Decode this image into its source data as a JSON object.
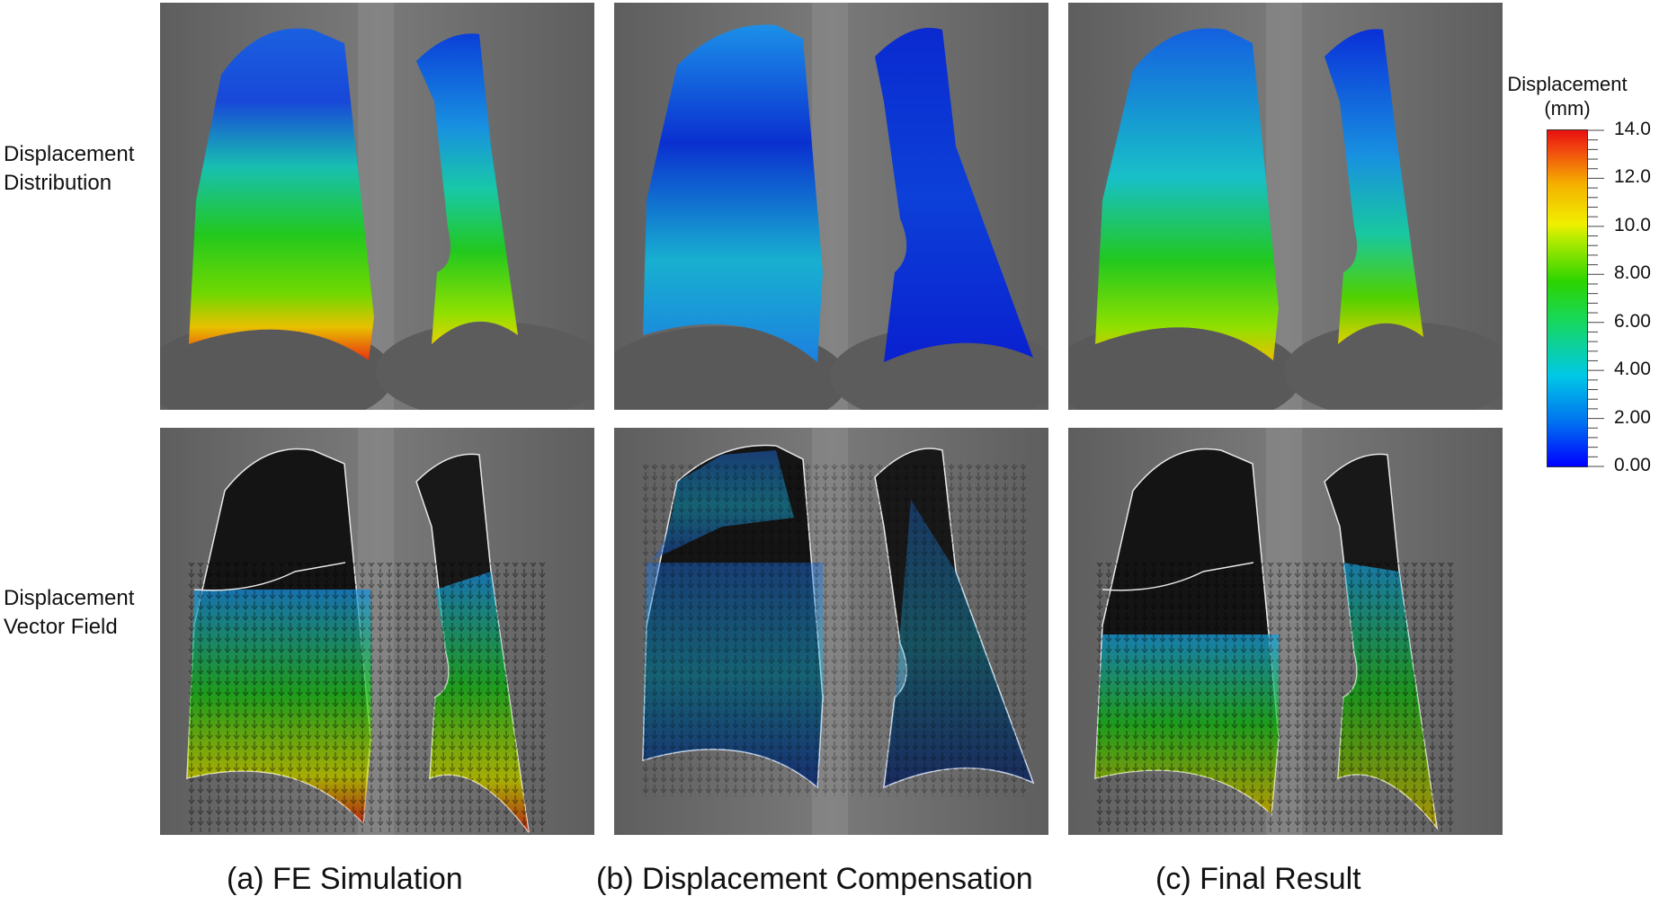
{
  "row_labels": {
    "top": [
      "Displacement",
      "Distribution"
    ],
    "bottom": [
      "Displacement",
      "Vector Field"
    ]
  },
  "captions": [
    {
      "letter": "(a)",
      "text": "FE Simulation"
    },
    {
      "letter": "(b)",
      "text": "Displacement Compensation"
    },
    {
      "letter": "(c)",
      "text": "Final Result"
    }
  ],
  "colorbar": {
    "title_line1": "Displacement",
    "title_line2": "(mm)",
    "labels": [
      "14.0",
      "12.0",
      "10.0",
      "8.00",
      "6.00",
      "4.00",
      "2.00",
      "0.00"
    ],
    "min": 0,
    "max": 14,
    "colors": {
      "low": "#0000ff",
      "mid_low": "#00c8e6",
      "mid": "#2cd400",
      "mid_high": "#f0f000",
      "high": "#e81010"
    }
  },
  "panels": [
    {
      "column": "a",
      "row": "distribution",
      "image": "lung-displacement-map"
    },
    {
      "column": "b",
      "row": "distribution",
      "image": "lung-displacement-map"
    },
    {
      "column": "c",
      "row": "distribution",
      "image": "lung-displacement-map"
    },
    {
      "column": "a",
      "row": "vector-field",
      "image": "lung-vector-field"
    },
    {
      "column": "b",
      "row": "vector-field",
      "image": "lung-vector-field"
    },
    {
      "column": "c",
      "row": "vector-field",
      "image": "lung-vector-field"
    }
  ]
}
